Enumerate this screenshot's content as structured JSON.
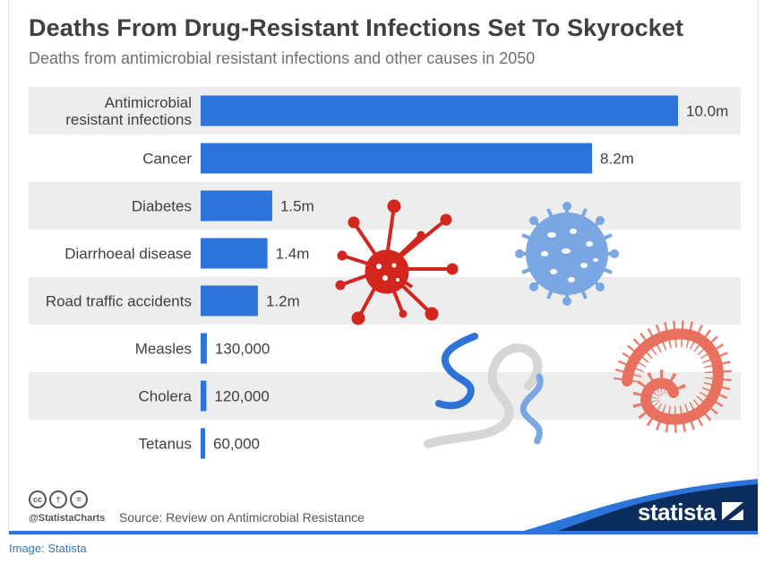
{
  "title": "Deaths From Drug-Resistant Infections Set To Skyrocket",
  "subtitle": "Deaths from antimicrobial resistant infections and other causes in 2050",
  "chart_data": {
    "type": "bar",
    "orientation": "horizontal",
    "title": "Deaths From Drug-Resistant Infections Set To Skyrocket",
    "subtitle": "Deaths from antimicrobial resistant infections and other causes in 2050",
    "xlabel": "",
    "ylabel": "",
    "xlim": [
      0,
      10000000
    ],
    "grid": false,
    "bar_color": "#2d74da",
    "categories": [
      [
        "Antimicrobial",
        "resistant infections"
      ],
      [
        "Cancer"
      ],
      [
        "Diabetes"
      ],
      [
        "Diarrhoeal disease"
      ],
      [
        "Road traffic accidents"
      ],
      [
        "Measles"
      ],
      [
        "Cholera"
      ],
      [
        "Tetanus"
      ]
    ],
    "values": [
      10000000,
      8200000,
      1500000,
      1400000,
      1200000,
      130000,
      120000,
      60000
    ],
    "labels": [
      "10.0m",
      "8.2m",
      "1.5m",
      "1.4m",
      "1.2m",
      "130,000",
      "120,000",
      "60,000"
    ]
  },
  "footer": {
    "handle": "@StatistaCharts",
    "source": "Source: Review on Antimicrobial Resistance",
    "license_icons": [
      "cc-icon",
      "by-icon",
      "nd-icon"
    ],
    "license_glyphs": [
      "cc",
      "†",
      "="
    ],
    "brand": "statista",
    "brand_color": "#0b2d5b",
    "accent_color": "#2d74da"
  },
  "credit": "Image: Statista",
  "colors": {
    "bar": "#2d74da",
    "band": "#ededed",
    "red_virus": "#d2261e",
    "blue_virus": "#7aa7e2",
    "bacteria_blue": "#3073d6",
    "worm_salmon": "#e8705f"
  }
}
